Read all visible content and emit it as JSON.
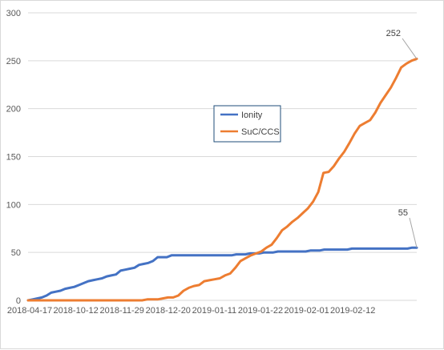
{
  "chart_data": {
    "type": "line",
    "title": "",
    "xlabel": "",
    "ylabel": "",
    "ylim": [
      0,
      300
    ],
    "y_ticks": [
      0,
      50,
      100,
      150,
      200,
      250,
      300
    ],
    "x_tick_labels": [
      "2018-04-17",
      "2018-10-12",
      "2018-11-29",
      "2018-12-20",
      "2019-01-11",
      "2019-01-22",
      "2019-02-01",
      "2019-02-12"
    ],
    "grid": "horizontal",
    "legend_position": "center",
    "series": [
      {
        "name": "Ionity",
        "color": "#4472C4",
        "values": [
          0,
          1,
          2,
          3,
          5,
          8,
          9,
          10,
          12,
          13,
          14,
          16,
          18,
          20,
          21,
          22,
          23,
          25,
          26,
          27,
          31,
          32,
          33,
          34,
          37,
          38,
          39,
          41,
          45,
          45,
          45,
          47,
          47,
          47,
          47,
          47,
          47,
          47,
          47,
          47,
          47,
          47,
          47,
          47,
          47,
          48,
          48,
          48,
          49,
          49,
          49,
          50,
          50,
          50,
          51,
          51,
          51,
          51,
          51,
          51,
          51,
          52,
          52,
          52,
          53,
          53,
          53,
          53,
          53,
          53,
          54,
          54,
          54,
          54,
          54,
          54,
          54,
          54,
          54,
          54,
          54,
          54,
          54,
          55,
          55
        ],
        "end_label": "55"
      },
      {
        "name": "SuC/CCS",
        "color": "#ED7D31",
        "values": [
          0,
          0,
          0,
          0,
          0,
          0,
          0,
          0,
          0,
          0,
          0,
          0,
          0,
          0,
          0,
          0,
          0,
          0,
          0,
          0,
          0,
          0,
          0,
          1,
          1,
          1,
          2,
          3,
          3,
          5,
          10,
          13,
          15,
          16,
          20,
          21,
          22,
          23,
          26,
          28,
          34,
          41,
          44,
          47,
          49,
          51,
          55,
          58,
          65,
          73,
          77,
          82,
          86,
          91,
          96,
          103,
          113,
          133,
          134,
          140,
          148,
          155,
          164,
          174,
          182,
          185,
          188,
          196,
          206,
          214,
          222,
          232,
          243,
          247,
          250,
          252
        ],
        "end_label": "252"
      }
    ]
  }
}
